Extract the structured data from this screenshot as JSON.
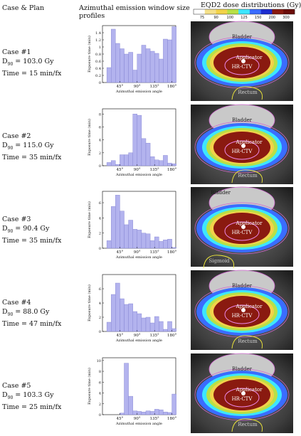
{
  "headers": {
    "case_plan": "Case & Plan",
    "profiles_line1": "Azimuthal emission window size",
    "profiles_line2": "profiles",
    "dose": "EQD2 dose distributions (Gy)"
  },
  "colorbar": {
    "ticks": [
      "75",
      "90",
      "100",
      "125",
      "150",
      "200",
      "300"
    ],
    "colors": [
      "#ffffff",
      "#f4e08a",
      "#f2d24a",
      "#b8e046",
      "#3de6ff",
      "#3a6cff",
      "#1c2ccf",
      "#8a1a10",
      "#6b0d0a"
    ]
  },
  "cases": [
    {
      "case": "Case #1",
      "d90": "D",
      "d90_sub": "90",
      "d90_val": " = 103.0 Gy",
      "time": "Time = 15 min/fx"
    },
    {
      "case": "Case #2",
      "d90": "D",
      "d90_sub": "90",
      "d90_val": " = 115.0 Gy",
      "time": "Time = 35 min/fx"
    },
    {
      "case": "Case #3",
      "d90": "D",
      "d90_sub": "90",
      "d90_val": " = 90.4 Gy",
      "time": "Time = 35 min/fx"
    },
    {
      "case": "Case #4",
      "d90": "D",
      "d90_sub": "90",
      "d90_val": " = 88.0 Gy",
      "time": "Time = 47 min/fx"
    },
    {
      "case": "Case #5",
      "d90": "D",
      "d90_sub": "90",
      "d90_val": " = 103.3 Gy",
      "time": "Time = 25 min/fx"
    }
  ],
  "ct_labels": [
    {
      "bladder": "Bladder",
      "applicator": "Applicator",
      "hrctv": "HR-CTV",
      "other": "Rectum"
    },
    {
      "bladder": "Bladder",
      "applicator": "Applicator",
      "hrctv": "HR-CTV",
      "other": "Rectum"
    },
    {
      "bladder": "Bladder",
      "applicator": "Applicator",
      "hrctv": "HR-CTV",
      "other": "Sigmoid"
    },
    {
      "bladder": "Bladder",
      "applicator": "Applicator",
      "hrctv": "HR-CTV",
      "other": "Rectum"
    },
    {
      "bladder": "Bladder",
      "applicator": "Applicator",
      "hrctv": "HR-CTV",
      "other": "Rectum"
    }
  ],
  "chart_data": [
    {
      "type": "bar",
      "xlabel": "Azimuthal emission angle",
      "ylabel": "Exposure time (min)",
      "xticks": [
        "45°",
        "90°",
        "135°",
        "180°"
      ],
      "xlim": [
        0,
        190
      ],
      "ylim": [
        0,
        1.6
      ],
      "yticks": [
        0,
        0.2,
        0.4,
        0.6,
        0.8,
        1.0,
        1.2,
        1.4
      ],
      "ytick_labels": [
        "0",
        "0.2",
        "0.4",
        "0.6",
        "0.8",
        "1",
        "1.2",
        "1.4"
      ],
      "values": [
        0.42,
        1.5,
        1.1,
        0.95,
        0.8,
        0.85,
        0.35,
        0.8,
        1.05,
        0.95,
        0.88,
        0.82,
        0.66,
        1.22,
        1.2,
        1.57
      ]
    },
    {
      "type": "bar",
      "xlabel": "Azimuthal emission angle",
      "ylabel": "Exposure time (min)",
      "xticks": [
        "45°",
        "90°",
        "135°",
        "180°"
      ],
      "xlim": [
        0,
        190
      ],
      "ylim": [
        0,
        8.8
      ],
      "yticks": [
        0,
        2,
        4,
        6,
        8
      ],
      "ytick_labels": [
        "0",
        "2",
        "4",
        "6",
        "8"
      ],
      "values": [
        0.5,
        0.8,
        0.2,
        1.7,
        1.7,
        2.0,
        8.0,
        7.8,
        4.2,
        3.5,
        1.4,
        0.9,
        0.8,
        1.6,
        0.4,
        0.3
      ]
    },
    {
      "type": "bar",
      "xlabel": "Azimuthal emission angle",
      "ylabel": "Exposure time (min)",
      "xticks": [
        "45°",
        "90°",
        "135°",
        "180°"
      ],
      "xlim": [
        0,
        190
      ],
      "ylim": [
        0,
        7.5
      ],
      "yticks": [
        0,
        2,
        4,
        6
      ],
      "ytick_labels": [
        "0",
        "2",
        "4",
        "6"
      ],
      "values": [
        1.0,
        5.5,
        7.0,
        4.9,
        3.1,
        3.7,
        2.5,
        2.4,
        2.0,
        1.9,
        1.0,
        1.5,
        0.9,
        1.1,
        1.2,
        0.1
      ]
    },
    {
      "type": "bar",
      "xlabel": "Azimuthal emission angle",
      "ylabel": "Exposure time (min)",
      "xticks": [
        "45°",
        "90°",
        "135°",
        "180°"
      ],
      "xlim": [
        0,
        190
      ],
      "ylim": [
        0,
        8.0
      ],
      "yticks": [
        0,
        2,
        4,
        6
      ],
      "ytick_labels": [
        "0",
        "2",
        "4",
        "6"
      ],
      "values": [
        1.3,
        5.2,
        6.8,
        4.6,
        3.8,
        3.9,
        2.8,
        2.5,
        1.9,
        2.0,
        1.2,
        2.1,
        1.4,
        0.3,
        1.4,
        0.4
      ]
    },
    {
      "type": "bar",
      "xlabel": "Azimuthal emission angle",
      "ylabel": "Exposure time (min)",
      "xticks": [
        "45°",
        "90°",
        "135°",
        "180°"
      ],
      "xlim": [
        0,
        190
      ],
      "ylim": [
        0,
        10.5
      ],
      "yticks": [
        0,
        2,
        4,
        6,
        8,
        10
      ],
      "ytick_labels": [
        "0",
        "2",
        "4",
        "6",
        "8",
        "10"
      ],
      "values": [
        0,
        0,
        0,
        0.3,
        9.5,
        3.4,
        0.7,
        0.6,
        0.5,
        0.7,
        0.6,
        1.0,
        0.9,
        0.5,
        0.4,
        3.8
      ]
    }
  ]
}
